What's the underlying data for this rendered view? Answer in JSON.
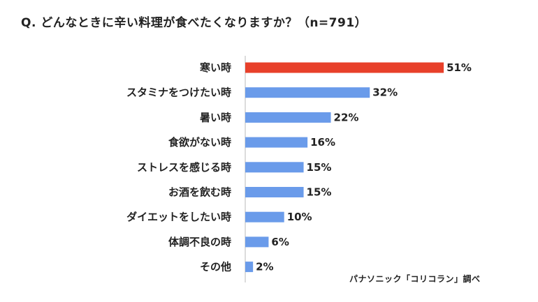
{
  "chart_data": {
    "type": "bar",
    "orientation": "horizontal",
    "title": "Q. どんなときに辛い料理が食べたくなりますか？（n=791）",
    "categories": [
      "寒い時",
      "スタミナをつけたい時",
      "暑い時",
      "食欲がない時",
      "ストレスを感じる時",
      "お酒を飲む時",
      "ダイエットをしたい時",
      "体調不良の時",
      "その他"
    ],
    "values": [
      51,
      32,
      22,
      16,
      15,
      15,
      10,
      6,
      2
    ],
    "value_labels": [
      "51%",
      "32%",
      "22%",
      "16%",
      "15%",
      "15%",
      "10%",
      "6%",
      "2%"
    ],
    "unit": "%",
    "xlim": [
      0,
      55
    ],
    "grid": false,
    "colors": {
      "highlight": "#e8402a",
      "default": "#6a9bea",
      "axis": "#d0d0d0"
    },
    "highlight_index": 0
  },
  "source_note": "パナソニック「コリコラン」調べ"
}
